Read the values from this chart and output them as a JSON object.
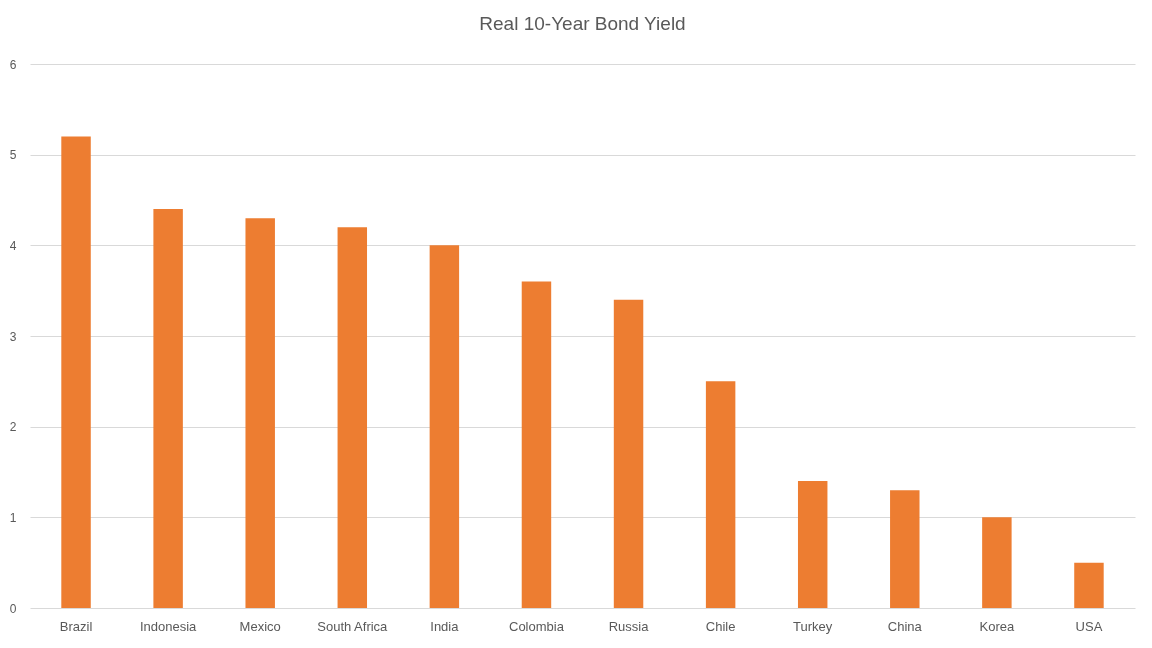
{
  "chart_data": {
    "type": "bar",
    "title": "Real 10-Year Bond Yield",
    "categories": [
      "Brazil",
      "Indonesia",
      "Mexico",
      "South Africa",
      "India",
      "Colombia",
      "Russia",
      "Chile",
      "Turkey",
      "China",
      "Korea",
      "USA"
    ],
    "values": [
      5.2,
      4.4,
      4.3,
      4.2,
      4.0,
      3.6,
      3.4,
      2.5,
      1.4,
      1.3,
      1.0,
      0.5
    ],
    "color": "#ed7d31",
    "ylim": [
      0,
      6
    ],
    "yticks": [
      0,
      1,
      2,
      3,
      4,
      5,
      6
    ],
    "grid": "y"
  }
}
